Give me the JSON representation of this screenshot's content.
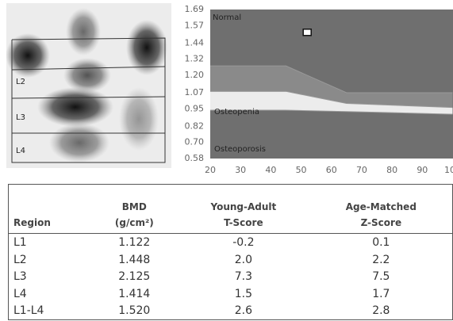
{
  "chart_data": {
    "type": "scatter",
    "x": [
      52
    ],
    "values": [
      1.52
    ],
    "color": "#ffffff",
    "xlim": [
      20,
      100
    ],
    "xticks": [
      20,
      30,
      40,
      50,
      60,
      70,
      80,
      90,
      100
    ],
    "ylim": [
      0.58,
      1.69
    ],
    "yticks": [
      0.58,
      {
        "value": 0.7,
        "label": "0.70"
      },
      0.82,
      0.95,
      1.07,
      {
        "value": 1.2,
        "label": "1.20"
      },
      1.32,
      1.44,
      1.57,
      1.69
    ],
    "boundaries": [
      {
        "x": [
          20,
          45,
          65,
          100
        ],
        "y": [
          1.27,
          1.27,
          1.07,
          1.07
        ]
      },
      {
        "x": [
          20,
          45,
          65,
          100
        ],
        "y": [
          1.08,
          1.08,
          0.99,
          0.96
        ]
      },
      {
        "x": [
          20,
          45,
          65,
          100
        ],
        "y": [
          0.94,
          0.94,
          0.93,
          0.91
        ]
      }
    ],
    "annotations": [
      "Normal",
      "Osteopenia",
      "Osteoporosis"
    ]
  },
  "scan_labels": [
    "L2",
    "L3",
    "L4"
  ],
  "table": {
    "header": [
      [
        "Region"
      ],
      [
        "BMD",
        "(g/cm²)"
      ],
      [
        "Young-Adult",
        "T-Score"
      ],
      [
        "Age-Matched",
        "Z-Score"
      ]
    ],
    "rows": [
      [
        "L1",
        "1.122",
        "-0.2",
        "0.1"
      ],
      [
        "L2",
        "1.448",
        "2.0",
        "2.2"
      ],
      [
        "L3",
        "2.125",
        "7.3",
        "7.5"
      ],
      [
        "L4",
        "1.414",
        "1.5",
        "1.7"
      ],
      [
        "L1-L4",
        "1.520",
        "2.6",
        "2.8"
      ]
    ]
  }
}
